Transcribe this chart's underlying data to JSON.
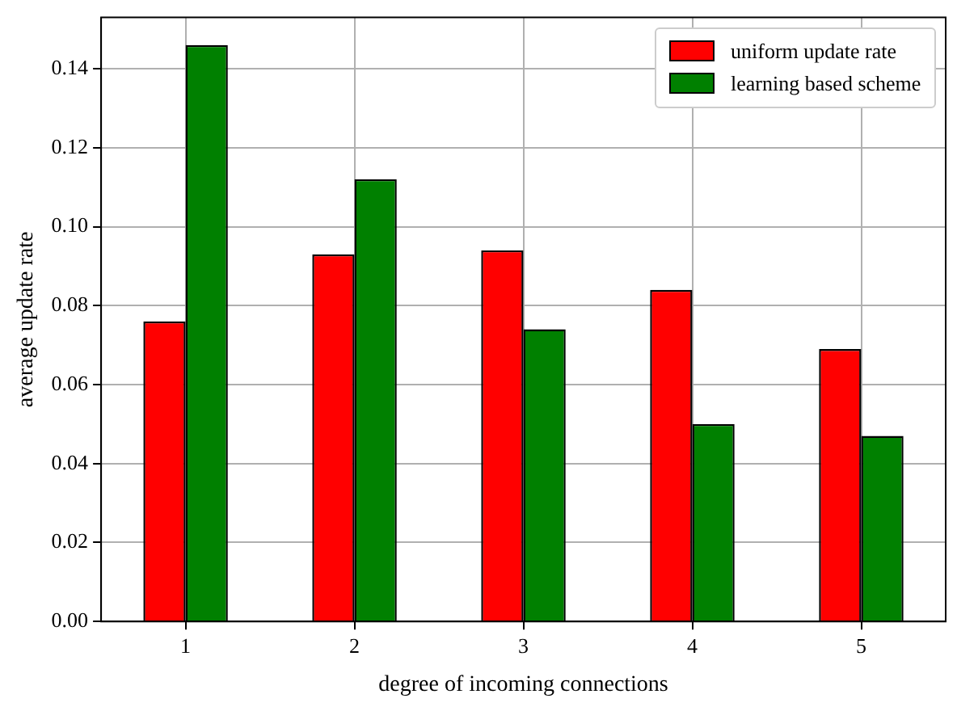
{
  "chart_data": {
    "type": "bar",
    "xlabel": "degree of incoming connections",
    "ylabel": "average update rate",
    "categories": [
      "1",
      "2",
      "3",
      "4",
      "5"
    ],
    "series": [
      {
        "name": "uniform update rate",
        "color": "#ff0000",
        "values": [
          0.076,
          0.093,
          0.094,
          0.084,
          0.069
        ]
      },
      {
        "name": "learning based scheme",
        "color": "#008000",
        "values": [
          0.146,
          0.112,
          0.074,
          0.05,
          0.047
        ]
      }
    ],
    "ylim": [
      0,
      0.153
    ],
    "yticks": [
      {
        "value": 0,
        "label": "0.00"
      },
      {
        "value": 0.02,
        "label": "0.02"
      },
      {
        "value": 0.04,
        "label": "0.04"
      },
      {
        "value": 0.06,
        "label": "0.06"
      },
      {
        "value": 0.08,
        "label": "0.08"
      },
      {
        "value": 0.1,
        "label": "0.10"
      },
      {
        "value": 0.12,
        "label": "0.12"
      },
      {
        "value": 0.14,
        "label": "0.14"
      }
    ],
    "grid": true,
    "legend": "top right"
  }
}
